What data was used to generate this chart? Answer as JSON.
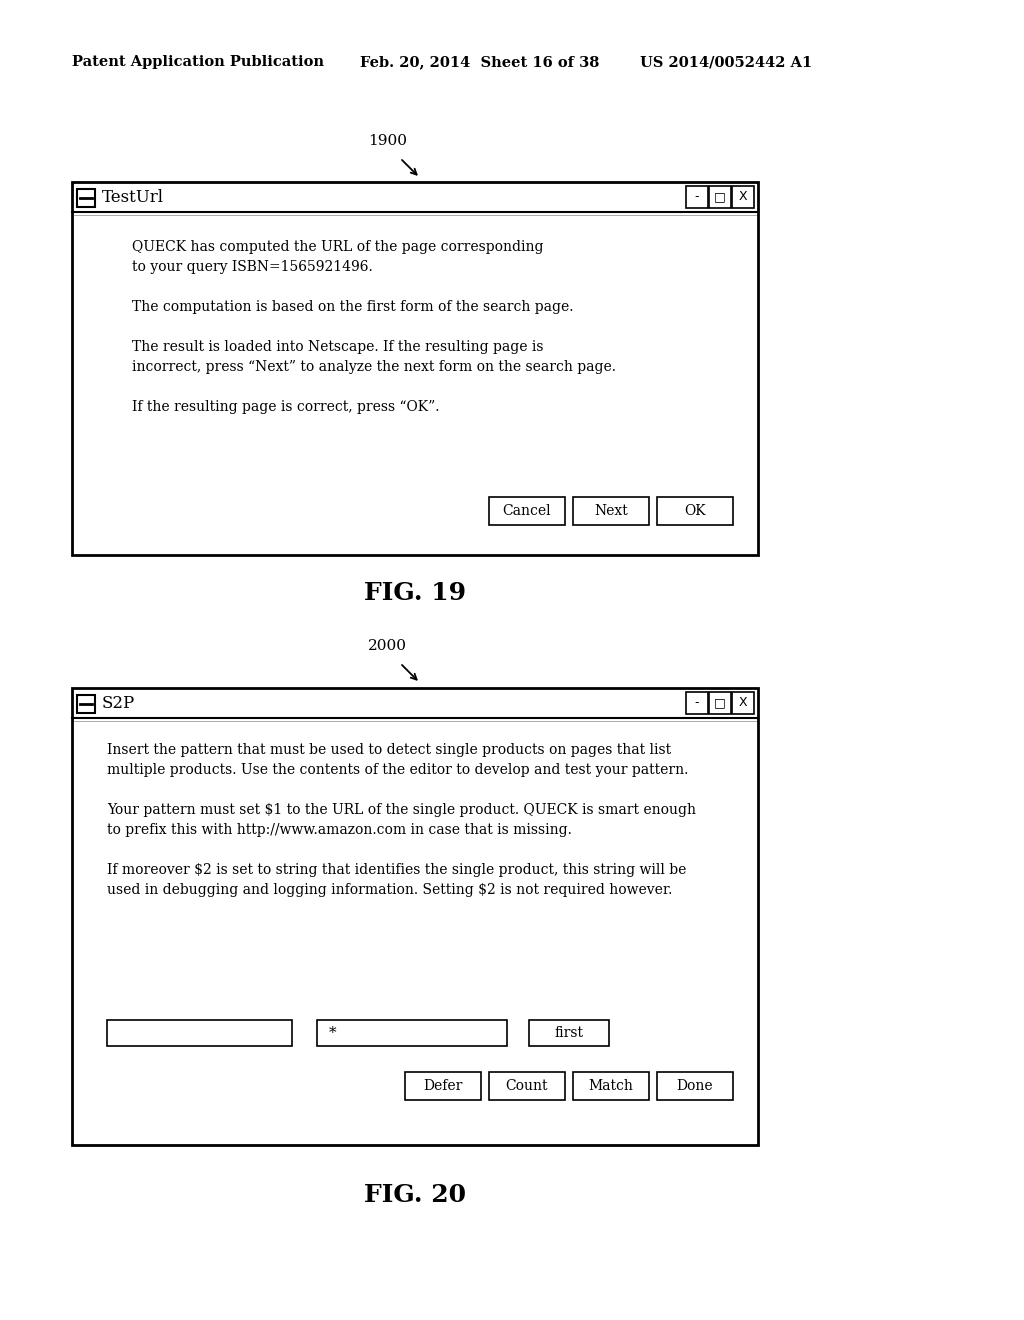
{
  "bg_color": "#ffffff",
  "header_text": "Patent Application Publication",
  "header_date": "Feb. 20, 2014  Sheet 16 of 38",
  "header_patent": "US 2014/0052442 A1",
  "fig19_label": "FIG. 19",
  "fig20_label": "FIG. 20",
  "fig19_ref": "1900",
  "fig20_ref": "2000",
  "win1_title": "TestUrl",
  "win2_title": "S2P",
  "win1_text_lines": [
    "QUECK has computed the URL of the page corresponding",
    "to your query ISBN=1565921496.",
    "",
    "The computation is based on the first form of the search page.",
    "",
    "The result is loaded into Netscape. If the resulting page is",
    "incorrect, press “Next” to analyze the next form on the search page.",
    "",
    "If the resulting page is correct, press “OK”."
  ],
  "win1_buttons": [
    "Cancel",
    "Next",
    "OK"
  ],
  "win2_text_lines": [
    "Insert the pattern that must be used to detect single products on pages that list",
    "multiple products. Use the contents of the editor to develop and test your pattern.",
    "",
    "Your pattern must set $1 to the URL of the single product. QUECK is smart enough",
    "to prefix this with http://www.amazon.com in case that is missing.",
    "",
    "If moreover $2 is set to string that identifies the single product, this string will be",
    "used in debugging and logging information. Setting $2 is not required however."
  ],
  "win2_input_star": "*",
  "win2_input_btn": "first",
  "win2_buttons": [
    "Defer",
    "Count",
    "Match",
    "Done"
  ]
}
